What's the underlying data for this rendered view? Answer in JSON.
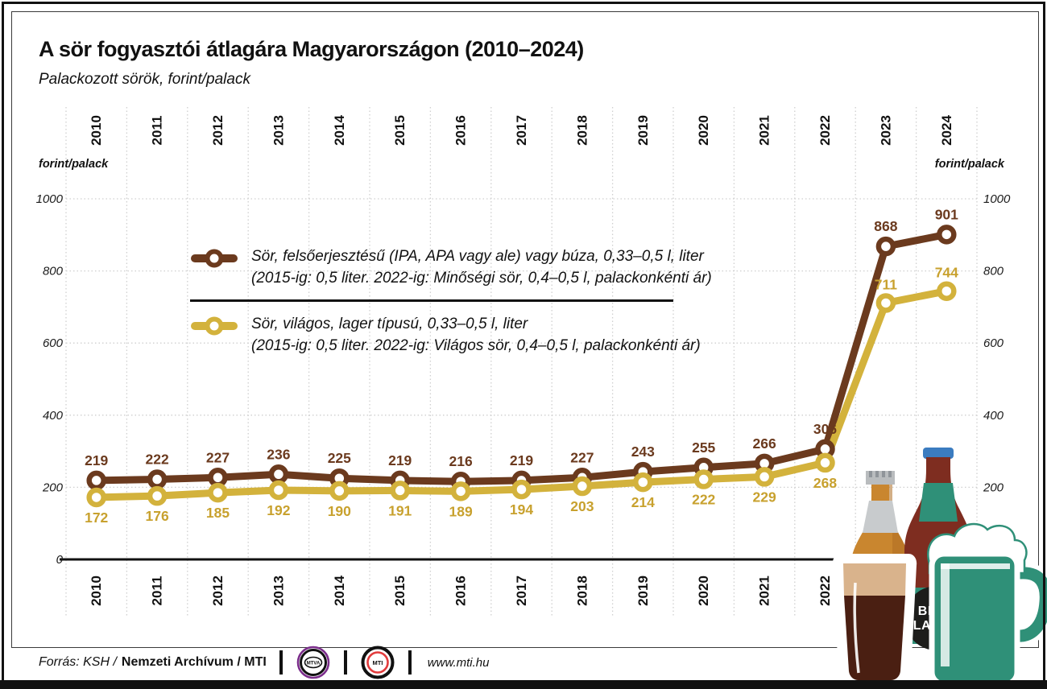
{
  "header": {
    "title": "A sör fogyasztói átlagára Magyarországon (2010–2024)",
    "subtitle": "Palackozott sörök, forint/palack"
  },
  "chart_data": {
    "type": "line",
    "title": "A sör fogyasztói átlagára Magyarországon (2010–2024)",
    "subtitle": "Palackozott sörök, forint/palack",
    "categories": [
      "2010",
      "2011",
      "2012",
      "2013",
      "2014",
      "2015",
      "2016",
      "2017",
      "2018",
      "2019",
      "2020",
      "2021",
      "2022",
      "2023",
      "2024"
    ],
    "series": [
      {
        "name": "Sör, felsőerjesztésű (IPA, APA vagy ale) vagy búza, 0,33–0,5 l, liter",
        "note": "(2015-ig: 0,5 liter. 2022-ig: Minőségi sör, 0,4–0,5 l, palackonkénti ár)",
        "color": "#6B3A1E",
        "label_color": "#6B3A1E",
        "values": [
          219,
          222,
          227,
          236,
          225,
          219,
          216,
          219,
          227,
          243,
          255,
          266,
          306,
          868,
          901
        ]
      },
      {
        "name": "Sör, világos, lager típusú, 0,33–0,5 l, liter",
        "note": "(2015-ig: 0,5 liter. 2022-ig: Világos sör, 0,4–0,5 l, palackonkénti ár)",
        "color": "#D3B23C",
        "label_color": "#C8A12E",
        "values": [
          172,
          176,
          185,
          192,
          190,
          191,
          189,
          194,
          203,
          214,
          222,
          229,
          268,
          711,
          744
        ]
      }
    ],
    "yticks": [
      0,
      200,
      400,
      600,
      800,
      1000
    ],
    "ylim": [
      0,
      1000
    ],
    "axis_unit_left": "forint/palack",
    "axis_unit_right": "forint/palack",
    "grid": "dotted",
    "legend_position": "upper-left-inside"
  },
  "footer": {
    "source_italic": "Forrás: KSH /",
    "source_bold": "Nemzeti Archívum / MTI",
    "logo1": "MTVA",
    "logo2": "MTI",
    "url": "www.mti.hu"
  },
  "illustration": {
    "bottle_label_line1": "BEER",
    "bottle_label_line2": "LAGER",
    "side_label": "R"
  }
}
